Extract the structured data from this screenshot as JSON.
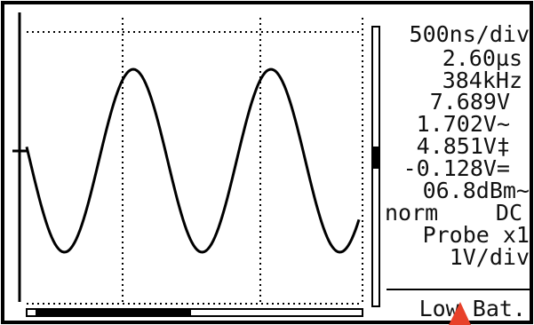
{
  "readouts": {
    "timebase": "500ns/div",
    "period": "2.60µs",
    "frequency": "384kHz",
    "peak_to_peak": "7.689V",
    "rms": "1.702V~",
    "max": "4.851V‡",
    "dc_mean": "-0.128V=",
    "dbm": "06.8dBm~"
  },
  "mode": {
    "trigger": "norm",
    "coupling": "DC"
  },
  "probe": "Probe x1",
  "volts_per_div": "1V/div",
  "status": "Low Bat."
}
